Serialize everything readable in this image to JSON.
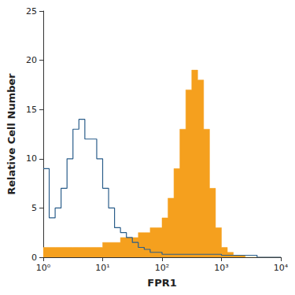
{
  "chart_data": {
    "type": "histogram",
    "x_label": "FPR1",
    "y_label": "Relative Cell Number",
    "log": "x",
    "grid": false,
    "xlim": [
      1,
      10000
    ],
    "xticks": [
      {
        "value": 1,
        "label": "10⁰"
      },
      {
        "value": 10,
        "label": "10¹"
      },
      {
        "value": 100,
        "label": "10²"
      },
      {
        "value": 1000,
        "label": "10³"
      },
      {
        "value": 10000,
        "label": "10⁴"
      }
    ],
    "ylim": [
      0,
      25
    ],
    "yticks": [
      0,
      5,
      10,
      15,
      20,
      25
    ],
    "bins": [
      1,
      1.259,
      1.585,
      1.995,
      2.512,
      3.162,
      3.981,
      5.012,
      6.31,
      7.943,
      10,
      12.59,
      15.85,
      19.95,
      25.12,
      31.62,
      39.81,
      50.12,
      63.1,
      79.43,
      100,
      125.9,
      158.5,
      199.5,
      251.2,
      316.2,
      398.1,
      501.2,
      631,
      794.3,
      1000,
      1259,
      1585,
      1995,
      2512,
      3162,
      3981,
      5012,
      6310,
      7943,
      10000
    ],
    "series": [
      {
        "type": "bar",
        "color": "#f5a01e",
        "values": [
          1,
          1,
          1,
          1,
          1,
          1,
          1,
          1,
          1,
          1,
          1.5,
          1.5,
          1.5,
          2,
          2,
          2,
          2.5,
          2.5,
          3,
          3,
          4,
          6,
          9,
          13,
          17,
          19,
          18,
          13,
          7,
          3,
          1,
          0.5,
          0.2,
          0.2,
          0,
          0,
          0,
          0,
          0,
          0
        ]
      },
      {
        "type": "line",
        "color": "#2a5d8a",
        "values": [
          9,
          4,
          5,
          7,
          10,
          13,
          14,
          12,
          12,
          10,
          7,
          5,
          3,
          2.5,
          2,
          1.5,
          1,
          0.8,
          0.5,
          0.5,
          0.3,
          0.3,
          0.3,
          0.3,
          0.3,
          0.3,
          0.3,
          0.3,
          0.3,
          0.3,
          0.2,
          0.2,
          0.2,
          0.2,
          0.2,
          0.2,
          0,
          0,
          0,
          0
        ]
      }
    ]
  }
}
